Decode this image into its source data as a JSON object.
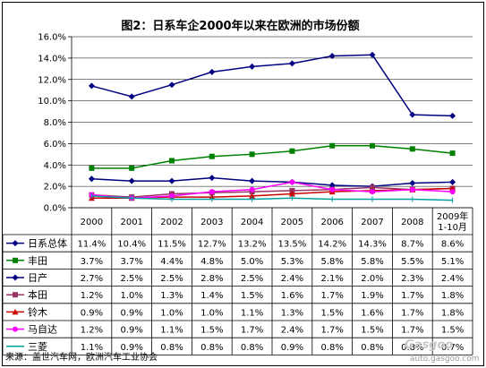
{
  "chart_data": {
    "type": "line",
    "title": "图2：日系车企2000年以来在欧洲的市场份额",
    "categories": [
      "2000",
      "2001",
      "2002",
      "2003",
      "2004",
      "2005",
      "2006",
      "2007",
      "2008",
      "2009年\n1-10月"
    ],
    "y_ticks": [
      "0.0%",
      "2.0%",
      "4.0%",
      "6.0%",
      "8.0%",
      "10.0%",
      "12.0%",
      "14.0%",
      "16.0%"
    ],
    "ylim": [
      0,
      16
    ],
    "grid": "horizontal",
    "legend": "table-below",
    "series": [
      {
        "name": "日系总体",
        "color": "#000080",
        "marker": "diamond",
        "values": [
          11.4,
          10.4,
          11.5,
          12.7,
          13.2,
          13.5,
          14.2,
          14.3,
          8.7,
          8.6
        ],
        "labels": [
          "11.4%",
          "10.4%",
          "11.5%",
          "12.7%",
          "13.2%",
          "13.5%",
          "14.2%",
          "14.3%",
          "8.7%",
          "8.6%"
        ]
      },
      {
        "name": "丰田",
        "color": "#008000",
        "marker": "square",
        "values": [
          3.7,
          3.7,
          4.4,
          4.8,
          5.0,
          5.3,
          5.8,
          5.8,
          5.5,
          5.1
        ],
        "labels": [
          "3.7%",
          "3.7%",
          "4.4%",
          "4.8%",
          "5.0%",
          "5.3%",
          "5.8%",
          "5.8%",
          "5.5%",
          "5.1%"
        ]
      },
      {
        "name": "日产",
        "color": "#000080",
        "marker": "diamond",
        "values": [
          2.7,
          2.5,
          2.5,
          2.8,
          2.5,
          2.4,
          2.1,
          2.0,
          2.3,
          2.4
        ],
        "labels": [
          "2.7%",
          "2.5%",
          "2.5%",
          "2.8%",
          "2.5%",
          "2.4%",
          "2.1%",
          "2.0%",
          "2.3%",
          "2.4%"
        ]
      },
      {
        "name": "本田",
        "color": "#993366",
        "marker": "square",
        "values": [
          1.2,
          1.0,
          1.3,
          1.4,
          1.5,
          1.6,
          1.7,
          1.9,
          1.7,
          1.8
        ],
        "labels": [
          "1.2%",
          "1.0%",
          "1.3%",
          "1.4%",
          "1.5%",
          "1.6%",
          "1.7%",
          "1.9%",
          "1.7%",
          "1.8%"
        ]
      },
      {
        "name": "铃木",
        "color": "#cc0000",
        "marker": "triangle",
        "values": [
          0.9,
          0.9,
          1.0,
          1.0,
          1.1,
          1.3,
          1.5,
          1.6,
          1.7,
          1.8
        ],
        "labels": [
          "0.9%",
          "0.9%",
          "1.0%",
          "1.0%",
          "1.1%",
          "1.3%",
          "1.5%",
          "1.6%",
          "1.7%",
          "1.8%"
        ]
      },
      {
        "name": "马自达",
        "color": "#ff00ff",
        "marker": "circle",
        "values": [
          1.2,
          0.9,
          1.1,
          1.5,
          1.7,
          2.4,
          1.7,
          1.5,
          1.7,
          1.5
        ],
        "labels": [
          "1.2%",
          "0.9%",
          "1.1%",
          "1.5%",
          "1.7%",
          "2.4%",
          "1.7%",
          "1.5%",
          "1.7%",
          "1.5%"
        ]
      },
      {
        "name": "三菱",
        "color": "#00a0a0",
        "marker": "none",
        "values": [
          1.1,
          0.9,
          0.8,
          0.8,
          0.8,
          0.9,
          0.8,
          0.8,
          0.8,
          0.7
        ],
        "labels": [
          "1.1%",
          "0.9%",
          "0.8%",
          "0.8%",
          "0.8%",
          "0.9%",
          "0.8%",
          "0.8%",
          "0.8%",
          "0.7%"
        ]
      }
    ]
  },
  "source": "来源：盖世汽车网，欧洲汽车工业协会",
  "watermark": "Gasgoo",
  "watermark_url": "auto.gasgoo.com"
}
